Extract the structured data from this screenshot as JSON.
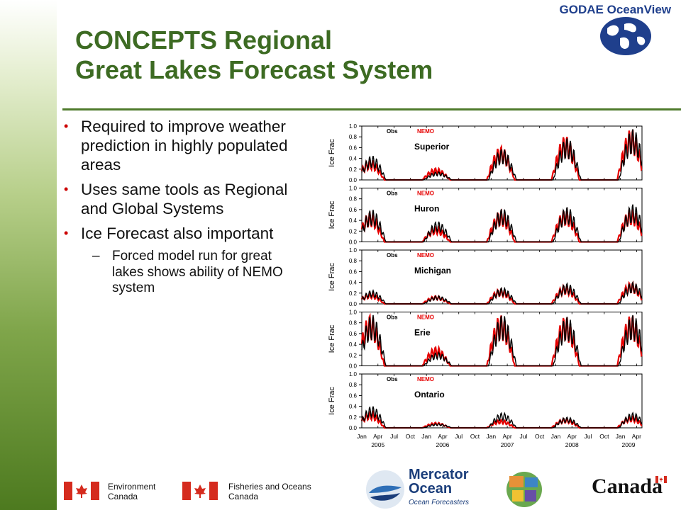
{
  "logo": {
    "text": "GODAE OceanView",
    "icon": "globe-icon"
  },
  "title": {
    "line1": "CONCEPTS Regional",
    "line2": "Great Lakes Forecast System"
  },
  "bullets": [
    {
      "text": "Required to improve weather prediction in highly populated areas"
    },
    {
      "text": "Uses same tools as Regional and Global Systems"
    },
    {
      "text": "Ice Forecast also important"
    }
  ],
  "subbullets": [
    {
      "dash": "–",
      "text": "Forced model run for great lakes shows ability of NEMO system"
    }
  ],
  "colors": {
    "title": "#3d6b23",
    "bullet": "#cc0000",
    "obs": "#000000",
    "nemo": "#e60000"
  },
  "chart_data": {
    "type": "line",
    "ylabel": "Ice Frac",
    "ylim": [
      0,
      1.0
    ],
    "yticks": [
      "1.0",
      "0.8",
      "0.6",
      "0.4",
      "0.2",
      "0.0"
    ],
    "xticks": [
      "Jan",
      "Apr",
      "Jul",
      "Oct",
      "Jan",
      "Apr",
      "Jul",
      "Oct",
      "Jan",
      "Apr",
      "Jul",
      "Oct",
      "Jan",
      "Apr",
      "Jul",
      "Oct",
      "Jan",
      "Apr"
    ],
    "years": [
      "2005",
      "2006",
      "2007",
      "2008",
      "2009"
    ],
    "legend": [
      "Obs",
      "NEMO"
    ],
    "panels": [
      {
        "lake": "Superior",
        "obs_peaks": [
          0.45,
          0.15,
          0.58,
          0.78,
          0.95
        ],
        "nemo_peaks": [
          0.38,
          0.22,
          0.62,
          0.82,
          0.95
        ]
      },
      {
        "lake": "Huron",
        "obs_peaks": [
          0.6,
          0.38,
          0.62,
          0.65,
          0.7
        ],
        "nemo_peaks": [
          0.55,
          0.28,
          0.58,
          0.6,
          0.62
        ]
      },
      {
        "lake": "Michigan",
        "obs_peaks": [
          0.25,
          0.15,
          0.3,
          0.38,
          0.4
        ],
        "nemo_peaks": [
          0.2,
          0.15,
          0.28,
          0.35,
          0.4
        ]
      },
      {
        "lake": "Erie",
        "obs_peaks": [
          0.95,
          0.25,
          0.95,
          0.92,
          0.95
        ],
        "nemo_peaks": [
          0.95,
          0.35,
          0.95,
          0.92,
          0.95
        ]
      },
      {
        "lake": "Ontario",
        "obs_peaks": [
          0.4,
          0.08,
          0.28,
          0.2,
          0.28
        ],
        "nemo_peaks": [
          0.3,
          0.1,
          0.15,
          0.18,
          0.22
        ]
      }
    ]
  },
  "footer": {
    "env": {
      "line1": "Environment",
      "line2": "Canada"
    },
    "dfo": {
      "line1": "Fisheries and Oceans",
      "line2": "Canada"
    },
    "mercator": {
      "line1": "Mercator",
      "line2": "Ocean",
      "tagline": "Ocean Forecasters"
    },
    "canada": "Canada"
  }
}
